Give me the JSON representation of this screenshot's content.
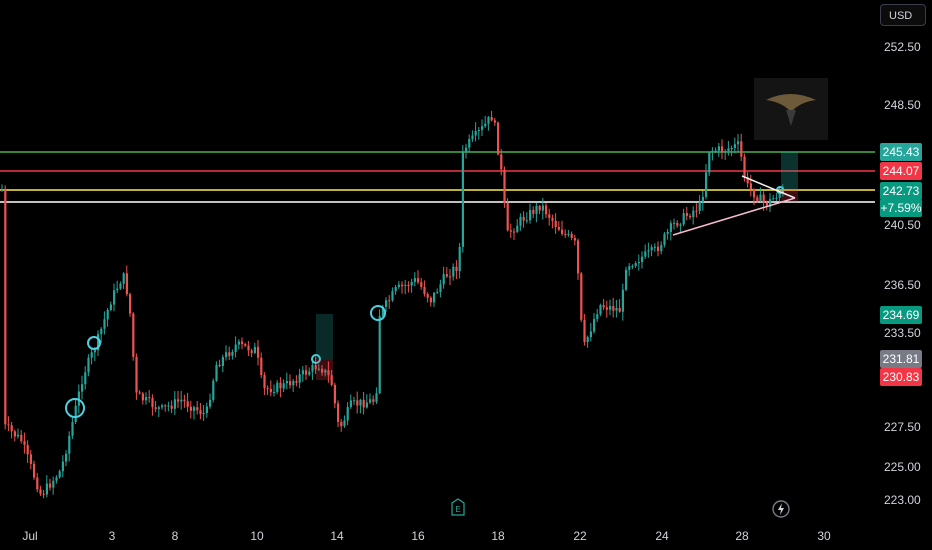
{
  "header": {
    "currency": "USD"
  },
  "chart_data": {
    "type": "candlestick",
    "y_ticks": [
      "252.50",
      "248.50",
      "240.50",
      "236.50",
      "233.50",
      "227.50",
      "225.00",
      "223.00"
    ],
    "x_ticks": [
      "Jul",
      "3",
      "8",
      "10",
      "14",
      "16",
      "18",
      "22",
      "24",
      "28",
      "30"
    ],
    "price_labels": [
      {
        "id": "green",
        "text": "245.43",
        "color": "#26a69a"
      },
      {
        "id": "red",
        "text": "244.07",
        "color": "#f23645"
      },
      {
        "id": "last",
        "text": "242.73",
        "color": "#089981"
      },
      {
        "id": "pct",
        "text": "+7.59%",
        "color": "#089981"
      },
      {
        "id": "p234",
        "text": "234.69",
        "color": "#089981"
      },
      {
        "id": "p231",
        "text": "231.81",
        "color": "#787b86"
      },
      {
        "id": "p230",
        "text": "230.83",
        "color": "#f23645"
      }
    ],
    "horizontal_levels": [
      {
        "price": 245.43,
        "color": "#4caf50"
      },
      {
        "price": 244.07,
        "color": "#f23645"
      },
      {
        "price": 242.73,
        "color": "#ffeb3b"
      },
      {
        "price": 241.8,
        "color": "#ffffff"
      }
    ],
    "colors": {
      "up": "#26a69a",
      "down": "#ef5350",
      "background": "#000000"
    }
  },
  "icons": {
    "earnings": "earnings-icon",
    "events": "lightning-icon",
    "watermark": "eagle-logo"
  }
}
